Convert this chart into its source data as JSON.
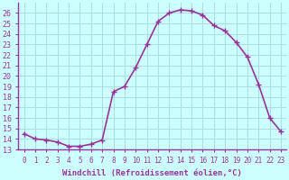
{
  "x": [
    0,
    1,
    2,
    3,
    4,
    5,
    6,
    7,
    8,
    9,
    10,
    11,
    12,
    13,
    14,
    15,
    16,
    17,
    18,
    19,
    20,
    21,
    22,
    23
  ],
  "y": [
    14.5,
    14.0,
    13.9,
    13.7,
    13.3,
    13.3,
    13.5,
    13.9,
    18.5,
    19.0,
    20.8,
    23.0,
    25.2,
    26.0,
    26.3,
    26.2,
    25.8,
    24.8,
    24.3,
    23.2,
    21.8,
    19.2,
    16.0,
    14.7
  ],
  "line_color": "#993399",
  "marker": "+",
  "marker_size": 4,
  "marker_lw": 1.0,
  "line_width": 1.2,
  "linestyle": "-",
  "bg_color": "#ccffff",
  "grid_color": "#b0dede",
  "xlabel": "Windchill (Refroidissement éolien,°C)",
  "xlabel_color": "#993399",
  "tick_color": "#993399",
  "axis_color": "#993399",
  "ylim": [
    13,
    27
  ],
  "xlim": [
    -0.5,
    23.5
  ],
  "yticks": [
    13,
    14,
    15,
    16,
    17,
    18,
    19,
    20,
    21,
    22,
    23,
    24,
    25,
    26
  ],
  "xticks": [
    0,
    1,
    2,
    3,
    4,
    5,
    6,
    7,
    8,
    9,
    10,
    11,
    12,
    13,
    14,
    15,
    16,
    17,
    18,
    19,
    20,
    21,
    22,
    23
  ],
  "xlabel_fontsize": 6.5,
  "ytick_fontsize": 6.0,
  "xtick_fontsize": 5.5
}
